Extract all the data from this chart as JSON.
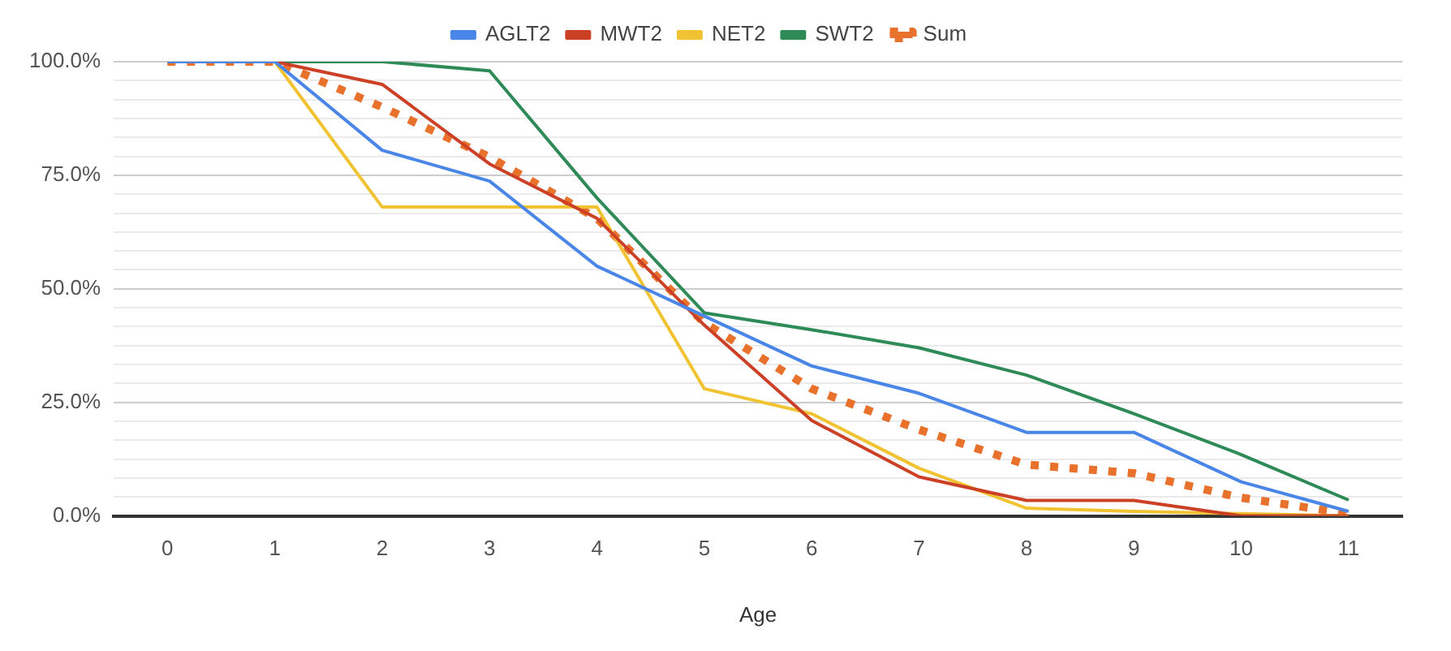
{
  "chart_data": {
    "type": "line",
    "xlabel": "Age",
    "categories": [
      "0",
      "1",
      "2",
      "3",
      "4",
      "5",
      "6",
      "7",
      "8",
      "9",
      "10",
      "11"
    ],
    "series": [
      {
        "name": "AGLT2",
        "color": "#4a86e8",
        "values": [
          100,
          100,
          80.5,
          73.7,
          55,
          44,
          33,
          27,
          18.4,
          18.4,
          7.5,
          1
        ]
      },
      {
        "name": "MWT2",
        "color": "#cc4125",
        "values": [
          100,
          100,
          95,
          77.5,
          65.5,
          42,
          21,
          8.6,
          3.4,
          3.4,
          0,
          0
        ]
      },
      {
        "name": "NET2",
        "color": "#f1c232",
        "values": [
          100,
          100,
          68,
          68,
          68,
          28,
          22.5,
          10.5,
          1.7,
          1,
          0.5,
          0
        ]
      },
      {
        "name": "SWT2",
        "color": "#2e8b57",
        "values": [
          100,
          100,
          100,
          98,
          70,
          44.7,
          41,
          37,
          31,
          22.5,
          13.5,
          3.5
        ]
      },
      {
        "name": "Sum",
        "color": "#e8712b",
        "line_style": "dotted",
        "values": [
          100,
          100,
          90,
          79,
          65.5,
          42.5,
          28,
          19,
          11.3,
          9.4,
          4,
          0.5
        ]
      }
    ],
    "ylim": [
      0,
      100
    ],
    "yticks": [
      {
        "value": 0,
        "label": "0.0%"
      },
      {
        "value": 4.17,
        "label": null
      },
      {
        "value": 8.33,
        "label": null
      },
      {
        "value": 12.5,
        "label": null
      },
      {
        "value": 16.67,
        "label": null
      },
      {
        "value": 20.83,
        "label": null
      },
      {
        "value": 25,
        "label": "25.0%"
      },
      {
        "value": 29.17,
        "label": null
      },
      {
        "value": 33.33,
        "label": null
      },
      {
        "value": 37.5,
        "label": null
      },
      {
        "value": 41.67,
        "label": null
      },
      {
        "value": 45.83,
        "label": null
      },
      {
        "value": 50,
        "label": "50.0%"
      },
      {
        "value": 54.17,
        "label": null
      },
      {
        "value": 58.33,
        "label": null
      },
      {
        "value": 62.5,
        "label": null
      },
      {
        "value": 66.67,
        "label": null
      },
      {
        "value": 70.83,
        "label": null
      },
      {
        "value": 75,
        "label": "75.0%"
      },
      {
        "value": 79.17,
        "label": null
      },
      {
        "value": 83.33,
        "label": null
      },
      {
        "value": 87.5,
        "label": null
      },
      {
        "value": 91.67,
        "label": null
      },
      {
        "value": 95.83,
        "label": null
      },
      {
        "value": 100,
        "label": "100.0%"
      }
    ],
    "grid": "y",
    "legend": "top",
    "marker": "none",
    "line_style": "solid"
  }
}
